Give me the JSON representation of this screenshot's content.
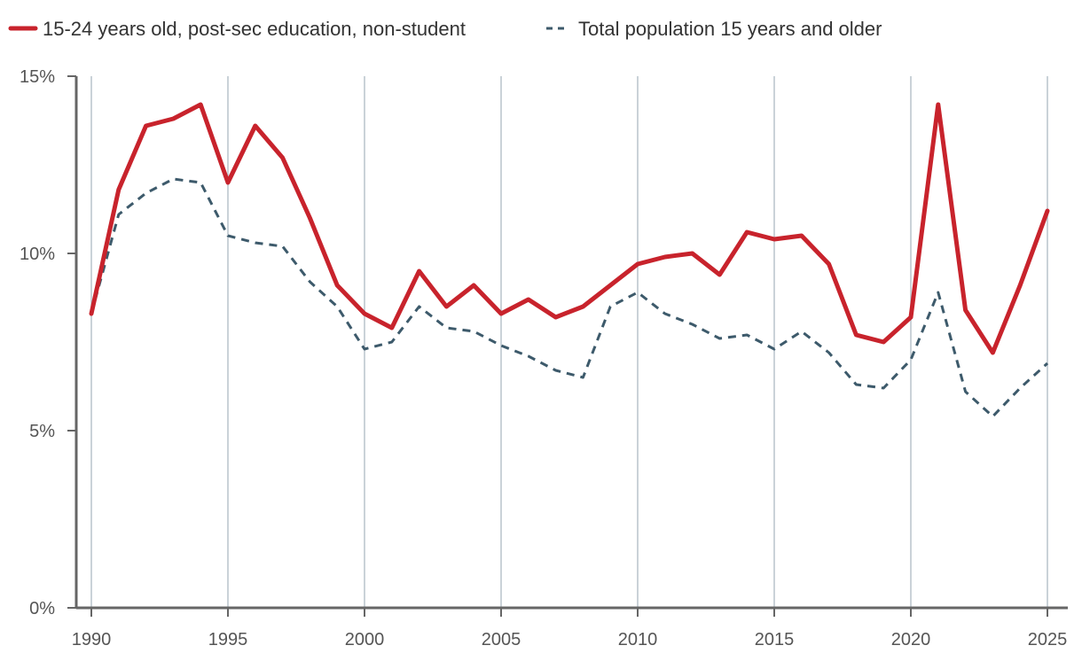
{
  "chart_data": {
    "type": "line",
    "title": "",
    "xlabel": "",
    "ylabel": "",
    "xlim": [
      1990,
      2025
    ],
    "ylim": [
      0,
      15
    ],
    "grid": "vertical",
    "legend_position": "top-left",
    "x_ticks": [
      "1990",
      "1995",
      "2000",
      "2005",
      "2010",
      "2015",
      "2020",
      "2025"
    ],
    "y_ticks": [
      "0%",
      "5%",
      "10%",
      "15%"
    ],
    "x": [
      1990,
      1991,
      1992,
      1993,
      1994,
      1995,
      1996,
      1997,
      1998,
      1999,
      2000,
      2001,
      2002,
      2003,
      2004,
      2005,
      2006,
      2007,
      2008,
      2009,
      2010,
      2011,
      2012,
      2013,
      2014,
      2015,
      2016,
      2017,
      2018,
      2019,
      2020,
      2021,
      2022,
      2023,
      2024,
      2025
    ],
    "series": [
      {
        "name": "15-24 years old, post-sec education, non-student",
        "color": "#c8232c",
        "style": "solid",
        "values": [
          8.3,
          11.8,
          13.6,
          13.8,
          14.2,
          12.0,
          13.6,
          12.7,
          11.0,
          9.1,
          8.3,
          7.9,
          9.5,
          8.5,
          9.1,
          8.3,
          8.7,
          8.2,
          8.5,
          9.1,
          9.7,
          9.9,
          10.0,
          9.4,
          10.6,
          10.4,
          10.5,
          9.7,
          7.7,
          7.5,
          8.2,
          14.2,
          8.4,
          7.2,
          9.1,
          11.2
        ]
      },
      {
        "name": "Total population 15 years and older",
        "color": "#3d5a6b",
        "style": "dashed",
        "values": [
          8.3,
          11.1,
          11.7,
          12.1,
          12.0,
          10.5,
          10.3,
          10.2,
          9.2,
          8.5,
          7.3,
          7.5,
          8.5,
          7.9,
          7.8,
          7.4,
          7.1,
          6.7,
          6.5,
          8.5,
          8.9,
          8.3,
          8.0,
          7.6,
          7.7,
          7.3,
          7.8,
          7.2,
          6.3,
          6.2,
          7.0,
          8.9,
          6.1,
          5.4,
          6.2,
          6.9
        ]
      }
    ]
  }
}
